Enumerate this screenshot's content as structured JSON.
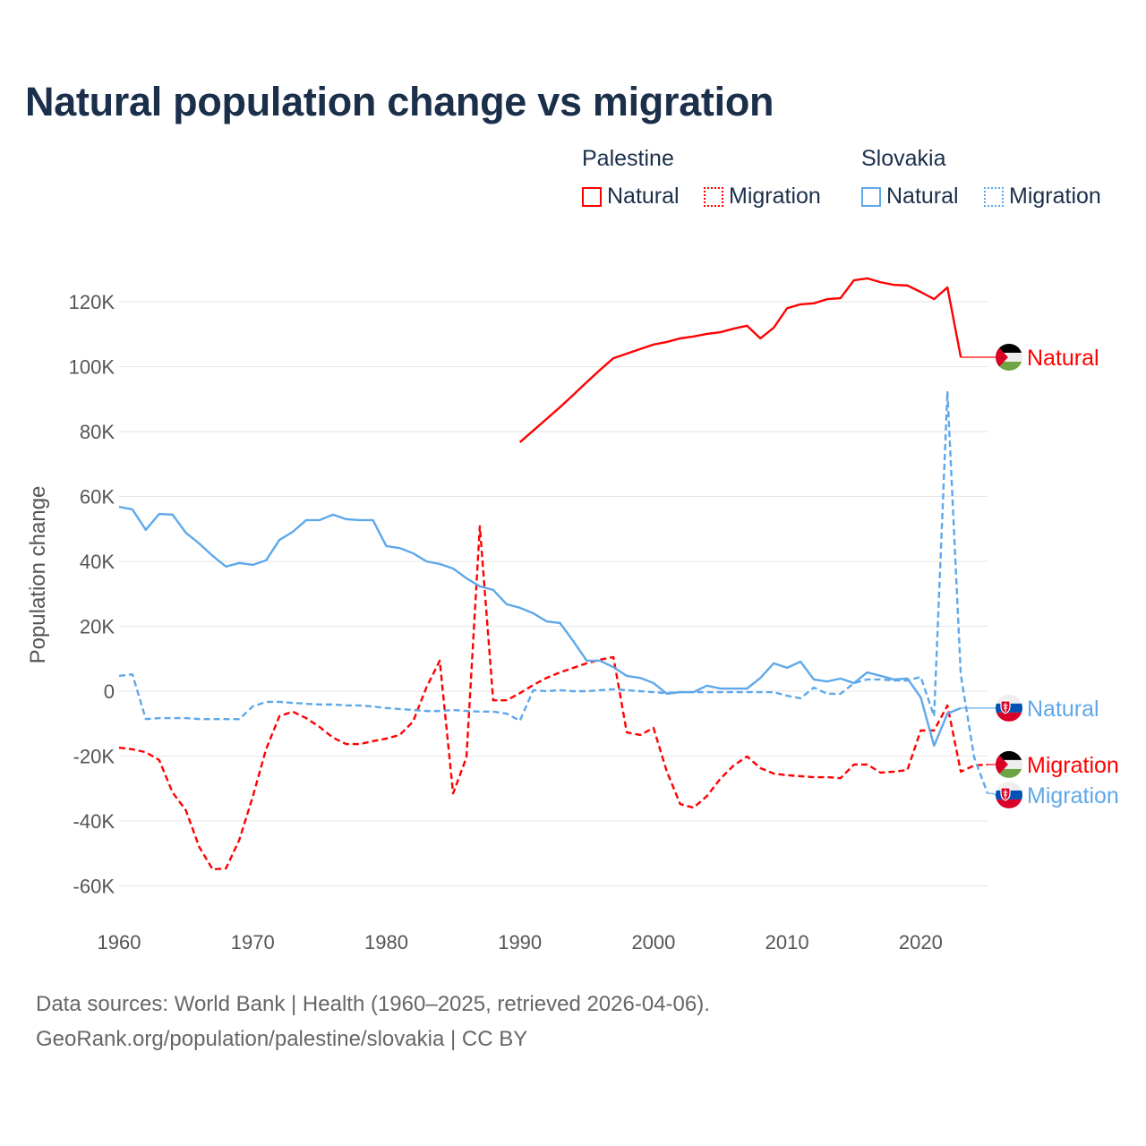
{
  "chart_data": {
    "type": "line",
    "title": "Natural population change vs migration",
    "xlabel": "",
    "ylabel": "Population change",
    "xlim": [
      1960,
      2025
    ],
    "ylim": [
      -70000,
      130000
    ],
    "yticks": [
      -60000,
      -40000,
      -20000,
      0,
      20000,
      40000,
      60000,
      80000,
      100000,
      120000
    ],
    "ytick_labels": [
      "-60K",
      "-40K",
      "-20K",
      "0",
      "20K",
      "40K",
      "60K",
      "80K",
      "100K",
      "120K"
    ],
    "xticks": [
      1960,
      1970,
      1980,
      1990,
      2000,
      2010,
      2020
    ],
    "xtick_labels": [
      "1960",
      "1970",
      "1980",
      "1990",
      "2000",
      "2010",
      "2020"
    ],
    "grid": true,
    "legend_placement": "top-right",
    "legend": {
      "groups": [
        {
          "name": "Palestine",
          "items": [
            "Natural",
            "Migration"
          ]
        },
        {
          "name": "Slovakia",
          "items": [
            "Natural",
            "Migration"
          ]
        }
      ]
    },
    "series": [
      {
        "name": "Palestine Natural",
        "country": "Palestine",
        "label": "Natural",
        "color": "#ff0000",
        "dash": false,
        "flag": "palestine-flag",
        "start": 1990,
        "values": [
          76700,
          80300,
          83900,
          87500,
          91300,
          95200,
          99000,
          102600,
          104000,
          105400,
          106800,
          107600,
          108700,
          109300,
          110100,
          110600,
          111700,
          112600,
          108700,
          112000,
          118000,
          119200,
          119500,
          120800,
          121100,
          126600,
          127200,
          126000,
          125200,
          125000,
          123000,
          120800,
          124400,
          102900
        ]
      },
      {
        "name": "Palestine Migration",
        "country": "Palestine",
        "label": "Migration",
        "color": "#ff0000",
        "dash": true,
        "flag": "palestine-flag",
        "start": 1960,
        "values": [
          -17400,
          -17900,
          -18800,
          -21200,
          -31200,
          -36700,
          -48000,
          -54900,
          -54600,
          -45800,
          -32600,
          -17900,
          -7700,
          -6300,
          -8300,
          -11000,
          -14300,
          -16300,
          -16300,
          -15400,
          -14600,
          -13500,
          -9400,
          1100,
          9400,
          -31500,
          -20400,
          50800,
          -2800,
          -2800,
          -600,
          1900,
          4100,
          5800,
          7200,
          8600,
          9700,
          10500,
          -12700,
          -13500,
          -11300,
          -24800,
          -34800,
          -35900,
          -32300,
          -27000,
          -22900,
          -20100,
          -23700,
          -25400,
          -25900,
          -26200,
          -26500,
          -26500,
          -26800,
          -22600,
          -22600,
          -25100,
          -24800,
          -24300,
          -12100,
          -12100,
          -4400,
          -24800,
          -22900,
          -22600
        ]
      },
      {
        "name": "Slovakia Natural",
        "country": "Slovakia",
        "label": "Natural",
        "color": "#5ea8ea",
        "dash": false,
        "flag": "slovakia-flag",
        "start": 1960,
        "values": [
          56800,
          56000,
          49700,
          54600,
          54400,
          48800,
          45500,
          41700,
          38400,
          39500,
          38900,
          40300,
          46600,
          49100,
          52700,
          52700,
          54400,
          53000,
          52700,
          52700,
          44700,
          44100,
          42500,
          40000,
          39200,
          37800,
          34800,
          32300,
          31200,
          26800,
          25700,
          24000,
          21500,
          21000,
          15400,
          9400,
          9400,
          7400,
          4700,
          4100,
          2500,
          -800,
          -300,
          -300,
          1700,
          800,
          800,
          800,
          4100,
          8600,
          7200,
          9100,
          3600,
          3000,
          3900,
          2500,
          5800,
          4700,
          3600,
          3900,
          -1900,
          -16800,
          -6900,
          -5200
        ]
      },
      {
        "name": "Slovakia Migration",
        "country": "Slovakia",
        "label": "Migration",
        "color": "#5ea8ea",
        "dash": true,
        "flag": "slovakia-flag",
        "start": 1960,
        "values": [
          4700,
          5200,
          -8600,
          -8300,
          -8300,
          -8300,
          -8600,
          -8600,
          -8600,
          -8600,
          -4700,
          -3300,
          -3300,
          -3600,
          -3900,
          -4100,
          -4100,
          -4400,
          -4400,
          -4700,
          -5200,
          -5500,
          -5800,
          -6100,
          -6100,
          -5800,
          -6100,
          -6300,
          -6300,
          -6900,
          -9100,
          300,
          0,
          300,
          0,
          0,
          300,
          600,
          300,
          0,
          -300,
          -600,
          -300,
          -300,
          -300,
          -300,
          -300,
          -300,
          -300,
          -300,
          -1400,
          -2200,
          1100,
          -800,
          -800,
          2500,
          3600,
          3600,
          3300,
          3300,
          4400,
          -7700,
          92400,
          5000,
          -20400,
          -31500
        ]
      }
    ]
  },
  "footer": {
    "line1": "Data sources: World Bank | Health (1960–2025, retrieved 2026-04-06).",
    "line2": "GeoRank.org/population/palestine/slovakia | CC BY"
  }
}
